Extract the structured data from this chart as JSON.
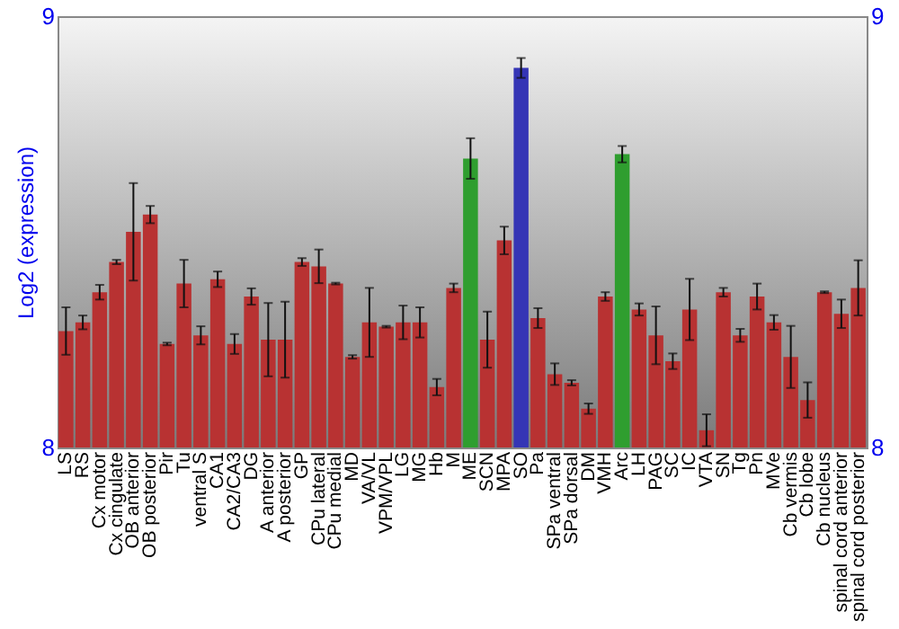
{
  "chart_data": {
    "type": "bar",
    "ylabel": "Log2 (expression)",
    "categories": [
      "LS",
      "RS",
      "Cx motor",
      "Cx cingulate",
      "OB anterior",
      "OB posterior",
      "Pir",
      "Tu",
      "ventral S",
      "CA1",
      "CA2/CA3",
      "DG",
      "A anterior",
      "A posterior",
      "GP",
      "CPu lateral",
      "CPu medial",
      "MD",
      "VA/VL",
      "VPM/VPL",
      "LG",
      "MG",
      "Hb",
      "M",
      "ME",
      "SCN",
      "MPA",
      "SO",
      "Pa",
      "SPa ventral",
      "SPa dorsal",
      "DM",
      "VMH",
      "Arc",
      "LH",
      "PAG",
      "SC",
      "IC",
      "VTA",
      "SN",
      "Tg",
      "Pn",
      "MVe",
      "Cb vermis",
      "Cb lobe",
      "Cb nucleus",
      "spinal cord anterior",
      "spinal cord posterior"
    ],
    "values": [
      8.27,
      8.29,
      8.36,
      8.43,
      8.5,
      8.54,
      8.24,
      8.38,
      8.26,
      8.39,
      8.24,
      8.35,
      8.25,
      8.25,
      8.43,
      8.42,
      8.38,
      8.21,
      8.29,
      8.28,
      8.29,
      8.29,
      8.14,
      8.37,
      8.67,
      8.25,
      8.48,
      8.88,
      8.3,
      8.17,
      8.15,
      8.09,
      8.35,
      8.68,
      8.32,
      8.26,
      8.2,
      8.32,
      8.04,
      8.36,
      8.26,
      8.35,
      8.29,
      8.21,
      8.11,
      8.36,
      8.31,
      8.37
    ],
    "errors": [
      0.055,
      0.016,
      0.017,
      0.005,
      0.113,
      0.02,
      0.003,
      0.055,
      0.021,
      0.018,
      0.023,
      0.019,
      0.085,
      0.088,
      0.009,
      0.039,
      0.002,
      0.004,
      0.08,
      0.002,
      0.039,
      0.035,
      0.019,
      0.01,
      0.047,
      0.065,
      0.032,
      0.023,
      0.023,
      0.025,
      0.006,
      0.012,
      0.01,
      0.019,
      0.014,
      0.067,
      0.018,
      0.071,
      0.037,
      0.01,
      0.015,
      0.03,
      0.017,
      0.072,
      0.041,
      0.002,
      0.033,
      0.064
    ],
    "colors": [
      "#b83232",
      "#b83232",
      "#b83232",
      "#b83232",
      "#b83232",
      "#b83232",
      "#b83232",
      "#b83232",
      "#b83232",
      "#b83232",
      "#b83232",
      "#b83232",
      "#b83232",
      "#b83232",
      "#b83232",
      "#b83232",
      "#b83232",
      "#b83232",
      "#b83232",
      "#b83232",
      "#b83232",
      "#b83232",
      "#b83232",
      "#b83232",
      "#2f9e2f",
      "#b83232",
      "#b83232",
      "#3535b5",
      "#b83232",
      "#b83232",
      "#b83232",
      "#b83232",
      "#b83232",
      "#2f9e2f",
      "#b83232",
      "#b83232",
      "#b83232",
      "#b83232",
      "#b83232",
      "#b83232",
      "#b83232",
      "#b83232",
      "#b83232",
      "#b83232",
      "#b83232",
      "#b83232",
      "#b83232",
      "#b83232"
    ],
    "ylim": [
      8,
      9
    ],
    "yticks": [
      8,
      9
    ],
    "y2lim": [
      8,
      9
    ],
    "y2ticks": [
      8,
      9
    ],
    "grid": false
  }
}
